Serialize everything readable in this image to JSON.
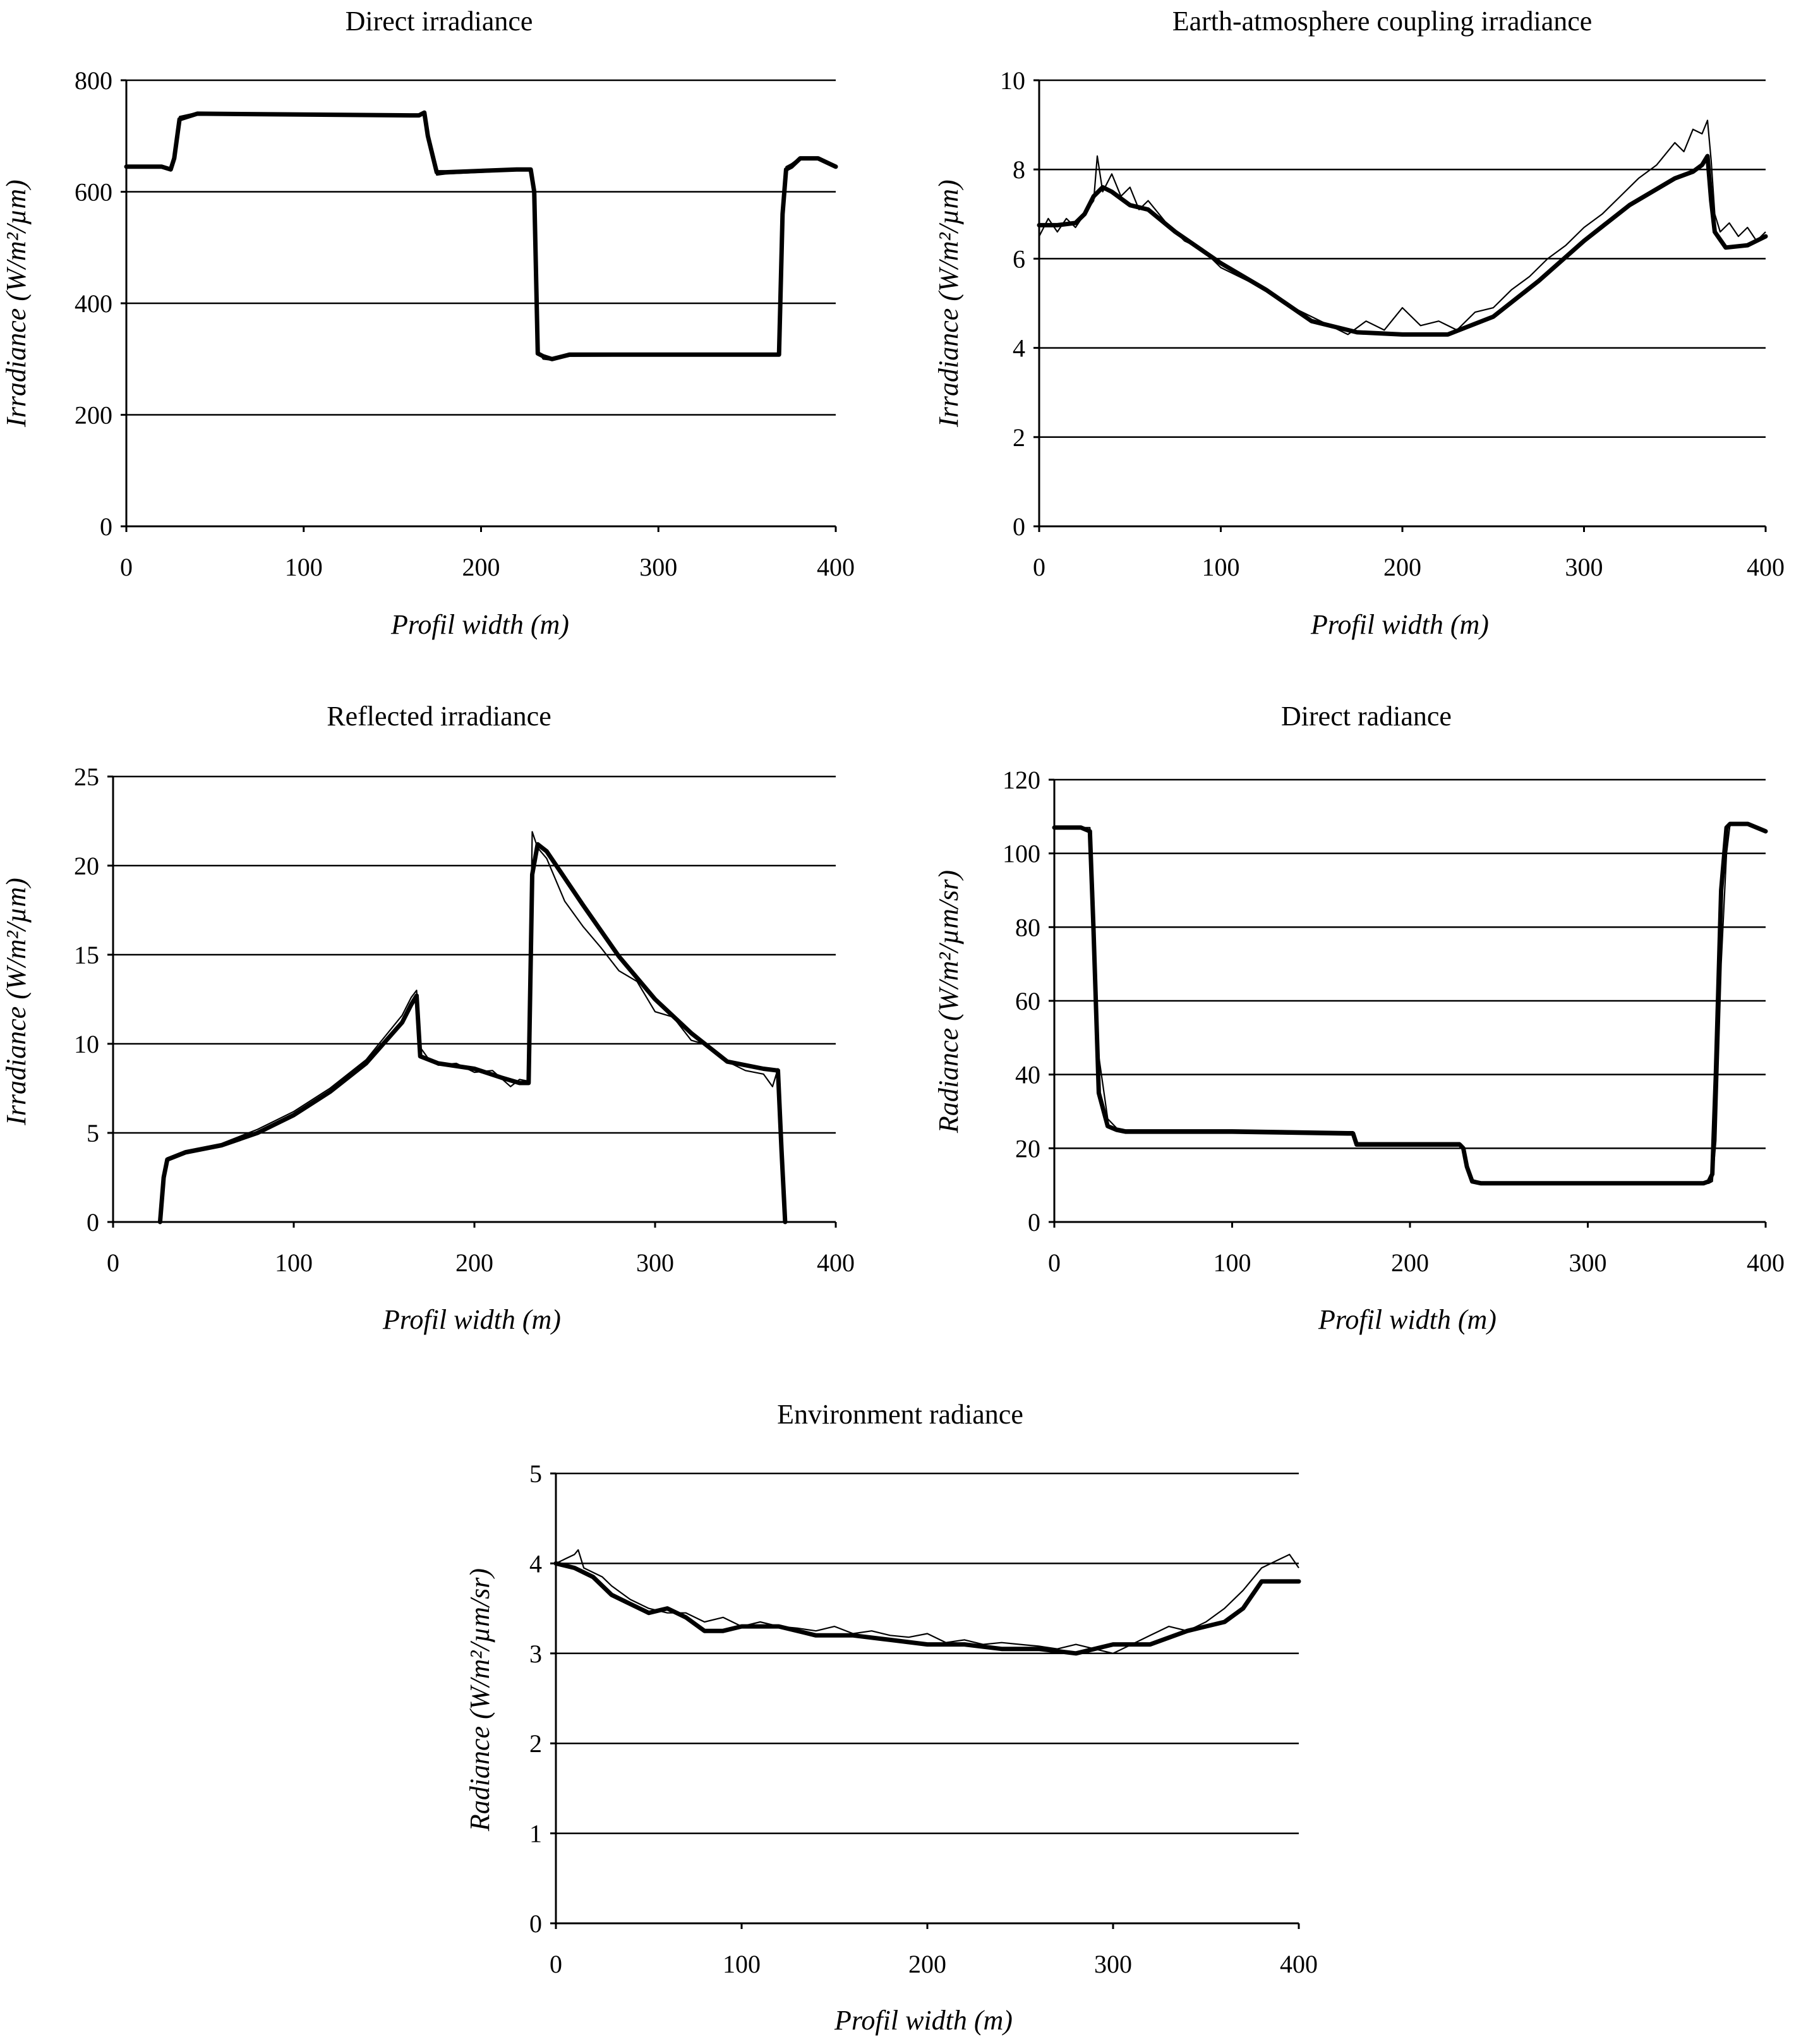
{
  "chart_data": [
    {
      "type": "line",
      "title": "Direct irradiance",
      "xlabel": "Profil width (m)",
      "ylabel": "Irradiance (W/m²/µm)",
      "xlim": [
        0,
        400
      ],
      "ylim": [
        0,
        800
      ],
      "xticks": [
        0,
        100,
        200,
        300,
        400
      ],
      "yticks": [
        0,
        200,
        400,
        600,
        800
      ],
      "grid": true,
      "series": [
        {
          "name": "thick",
          "x": [
            0,
            20,
            25,
            27,
            30,
            40,
            160,
            165,
            168,
            170,
            175,
            180,
            220,
            228,
            230,
            232,
            235,
            240,
            250,
            300,
            368,
            370,
            372,
            375,
            380,
            390,
            400
          ],
          "y": [
            645,
            645,
            640,
            660,
            730,
            740,
            737,
            737,
            742,
            700,
            635,
            635,
            640,
            640,
            600,
            310,
            305,
            300,
            308,
            308,
            308,
            560,
            640,
            645,
            660,
            660,
            645
          ]
        },
        {
          "name": "thin",
          "x": [
            0,
            20,
            25,
            27,
            30,
            40,
            160,
            165,
            168,
            170,
            175,
            180,
            220,
            228,
            230,
            232,
            235,
            240,
            250,
            300,
            368,
            370,
            372,
            375,
            380,
            390,
            400
          ],
          "y": [
            645,
            645,
            640,
            665,
            735,
            742,
            735,
            738,
            744,
            705,
            630,
            632,
            638,
            642,
            605,
            315,
            300,
            298,
            305,
            306,
            306,
            555,
            645,
            650,
            662,
            658,
            645
          ]
        }
      ]
    },
    {
      "type": "line",
      "title": "Earth-atmosphere coupling irradiance",
      "xlabel": "Profil width (m)",
      "ylabel": "Irradiance (W/m²/µm)",
      "xlim": [
        0,
        400
      ],
      "ylim": [
        0,
        10
      ],
      "xticks": [
        0,
        100,
        200,
        300,
        400
      ],
      "yticks": [
        0,
        2,
        4,
        6,
        8,
        10
      ],
      "grid": true,
      "series": [
        {
          "name": "thick",
          "x": [
            0,
            10,
            20,
            25,
            30,
            35,
            40,
            50,
            60,
            75,
            100,
            125,
            150,
            175,
            200,
            225,
            250,
            275,
            300,
            325,
            350,
            360,
            365,
            368,
            370,
            372,
            378,
            390,
            400
          ],
          "y": [
            6.75,
            6.75,
            6.8,
            7.0,
            7.4,
            7.6,
            7.5,
            7.2,
            7.1,
            6.6,
            5.9,
            5.3,
            4.6,
            4.35,
            4.3,
            4.3,
            4.7,
            5.5,
            6.4,
            7.2,
            7.8,
            7.95,
            8.1,
            8.3,
            7.3,
            6.6,
            6.25,
            6.3,
            6.5
          ]
        },
        {
          "name": "thin",
          "x": [
            0,
            5,
            10,
            15,
            20,
            25,
            30,
            32,
            35,
            40,
            45,
            50,
            55,
            60,
            70,
            80,
            90,
            100,
            110,
            120,
            130,
            140,
            150,
            160,
            170,
            180,
            190,
            200,
            210,
            220,
            230,
            240,
            250,
            260,
            270,
            280,
            290,
            300,
            310,
            320,
            330,
            340,
            350,
            355,
            360,
            365,
            368,
            370,
            372,
            375,
            380,
            385,
            390,
            395,
            400
          ],
          "y": [
            6.5,
            6.9,
            6.6,
            6.9,
            6.7,
            7.0,
            7.3,
            8.3,
            7.5,
            7.9,
            7.4,
            7.6,
            7.1,
            7.3,
            6.8,
            6.4,
            6.2,
            5.8,
            5.6,
            5.4,
            5.2,
            4.9,
            4.7,
            4.5,
            4.3,
            4.6,
            4.4,
            4.9,
            4.5,
            4.6,
            4.4,
            4.8,
            4.9,
            5.3,
            5.6,
            6.0,
            6.3,
            6.7,
            7.0,
            7.4,
            7.8,
            8.1,
            8.6,
            8.4,
            8.9,
            8.8,
            9.1,
            8.2,
            7.0,
            6.6,
            6.8,
            6.5,
            6.7,
            6.4,
            6.6
          ]
        }
      ]
    },
    {
      "type": "line",
      "title": "Reflected irradiance",
      "xlabel": "Profil width (m)",
      "ylabel": "Irradiance (W/m²/µm)",
      "xlim": [
        0,
        400
      ],
      "ylim": [
        0,
        25
      ],
      "xticks": [
        0,
        100,
        200,
        300,
        400
      ],
      "yticks": [
        0,
        5,
        10,
        15,
        20,
        25
      ],
      "grid": true,
      "series": [
        {
          "name": "thick",
          "x": [
            26,
            28,
            30,
            40,
            60,
            80,
            100,
            120,
            140,
            160,
            165,
            168,
            170,
            180,
            200,
            215,
            225,
            230,
            232,
            235,
            240,
            260,
            280,
            300,
            320,
            340,
            360,
            368,
            370,
            372
          ],
          "y": [
            0,
            2.5,
            3.5,
            3.9,
            4.3,
            5.0,
            6.0,
            7.3,
            8.9,
            11.2,
            12.2,
            12.7,
            9.3,
            8.9,
            8.6,
            8.1,
            7.8,
            7.8,
            19.5,
            21.2,
            20.8,
            17.8,
            14.9,
            12.5,
            10.6,
            9.0,
            8.6,
            8.5,
            4.0,
            0
          ]
        },
        {
          "name": "thin",
          "x": [
            26,
            28,
            30,
            40,
            60,
            80,
            100,
            120,
            140,
            160,
            165,
            168,
            170,
            175,
            180,
            190,
            200,
            210,
            220,
            225,
            230,
            232,
            235,
            240,
            245,
            250,
            260,
            270,
            280,
            290,
            300,
            310,
            320,
            330,
            340,
            350,
            360,
            365,
            368,
            370,
            372
          ],
          "y": [
            0,
            2.7,
            3.6,
            4.0,
            4.4,
            5.2,
            6.2,
            7.5,
            9.1,
            11.6,
            12.6,
            13.0,
            9.8,
            9.1,
            8.8,
            8.9,
            8.4,
            8.5,
            7.6,
            8.0,
            7.9,
            21.9,
            21.0,
            20.4,
            19.2,
            18.0,
            16.6,
            15.4,
            14.1,
            13.5,
            11.8,
            11.5,
            10.2,
            9.9,
            9.0,
            8.5,
            8.3,
            7.6,
            8.6,
            4.0,
            0
          ]
        }
      ]
    },
    {
      "type": "line",
      "title": "Direct radiance",
      "xlabel": "Profil width (m)",
      "ylabel": "Radiance (W/m²/µm/sr)",
      "xlim": [
        0,
        400
      ],
      "ylim": [
        0,
        120
      ],
      "xticks": [
        0,
        100,
        200,
        300,
        400
      ],
      "yticks": [
        0,
        20,
        40,
        60,
        80,
        100,
        120
      ],
      "grid": true,
      "series": [
        {
          "name": "thick",
          "x": [
            0,
            15,
            20,
            22,
            25,
            30,
            35,
            40,
            100,
            165,
            168,
            170,
            225,
            228,
            230,
            232,
            235,
            240,
            300,
            365,
            368,
            370,
            372,
            375,
            378,
            380,
            390,
            400
          ],
          "y": [
            107,
            107,
            106,
            80,
            35,
            26,
            25,
            24.5,
            24.5,
            24,
            24,
            21,
            21,
            21,
            20,
            15,
            11,
            10.5,
            10.5,
            10.5,
            11,
            13,
            40,
            90,
            107,
            108,
            108,
            106
          ]
        },
        {
          "name": "thin",
          "x": [
            0,
            15,
            20,
            22,
            25,
            30,
            35,
            40,
            100,
            165,
            168,
            170,
            225,
            228,
            230,
            232,
            235,
            240,
            300,
            365,
            368,
            370,
            372,
            375,
            378,
            380,
            390,
            400
          ],
          "y": [
            107,
            107,
            107,
            90,
            45,
            28,
            25.5,
            25,
            25,
            24.5,
            24.5,
            21.5,
            21.5,
            21.5,
            20.5,
            16,
            11.5,
            10.8,
            10.8,
            10.8,
            10.5,
            11,
            22,
            70,
            100,
            108,
            108,
            106
          ]
        }
      ]
    },
    {
      "type": "line",
      "title": "Environment radiance",
      "xlabel": "Profil width (m)",
      "ylabel": "Radiance (W/m²/µm/sr)",
      "xlim": [
        0,
        400
      ],
      "ylim": [
        0,
        5
      ],
      "xticks": [
        0,
        100,
        200,
        300,
        400
      ],
      "yticks": [
        0,
        1,
        2,
        3,
        4,
        5
      ],
      "grid": true,
      "series": [
        {
          "name": "thick",
          "x": [
            0,
            10,
            20,
            30,
            40,
            50,
            60,
            70,
            80,
            90,
            100,
            120,
            140,
            160,
            180,
            200,
            220,
            240,
            260,
            280,
            300,
            320,
            340,
            360,
            370,
            380,
            390,
            400
          ],
          "y": [
            4.0,
            3.95,
            3.85,
            3.65,
            3.55,
            3.45,
            3.5,
            3.4,
            3.25,
            3.25,
            3.3,
            3.3,
            3.2,
            3.2,
            3.15,
            3.1,
            3.1,
            3.05,
            3.05,
            3.0,
            3.1,
            3.1,
            3.25,
            3.35,
            3.5,
            3.8,
            3.8,
            3.8
          ]
        },
        {
          "name": "thin",
          "x": [
            0,
            5,
            10,
            12,
            15,
            20,
            25,
            30,
            40,
            50,
            60,
            70,
            80,
            90,
            100,
            110,
            120,
            130,
            140,
            150,
            160,
            170,
            180,
            190,
            200,
            210,
            220,
            230,
            240,
            250,
            260,
            270,
            280,
            290,
            300,
            310,
            320,
            330,
            340,
            350,
            360,
            370,
            380,
            390,
            395,
            400
          ],
          "y": [
            4.0,
            4.05,
            4.1,
            4.15,
            3.95,
            3.9,
            3.85,
            3.75,
            3.6,
            3.5,
            3.45,
            3.45,
            3.35,
            3.4,
            3.3,
            3.35,
            3.3,
            3.28,
            3.25,
            3.3,
            3.22,
            3.25,
            3.2,
            3.18,
            3.22,
            3.12,
            3.15,
            3.1,
            3.12,
            3.1,
            3.08,
            3.05,
            3.1,
            3.05,
            3.0,
            3.1,
            3.2,
            3.3,
            3.25,
            3.35,
            3.5,
            3.7,
            3.95,
            4.05,
            4.1,
            3.95
          ]
        }
      ]
    }
  ]
}
